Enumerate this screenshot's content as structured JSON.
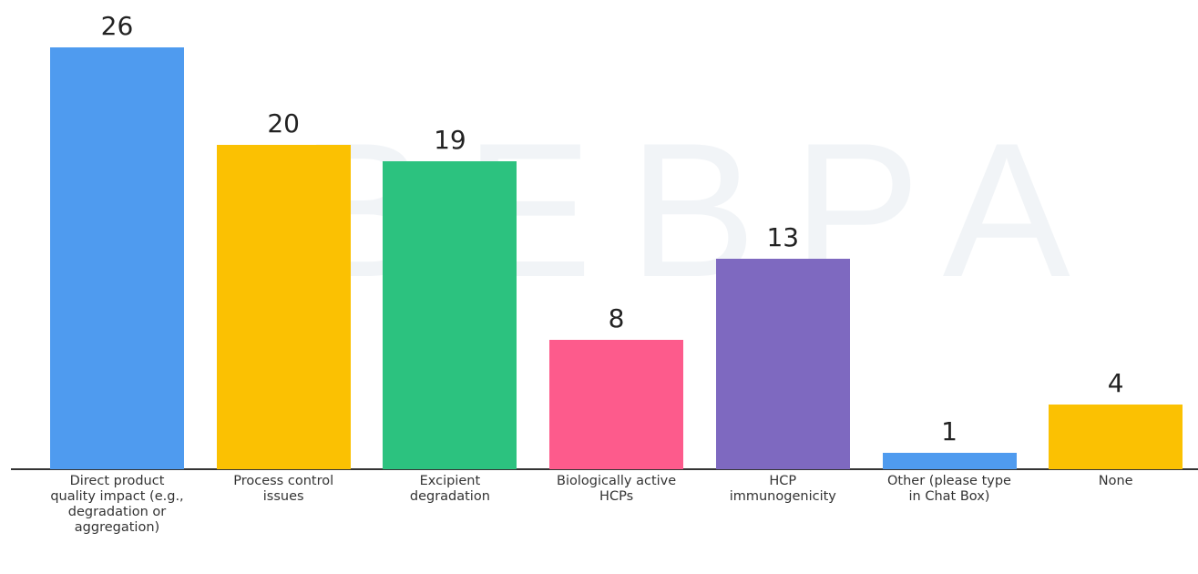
{
  "chart_data": {
    "type": "bar",
    "watermark": "BEBPA",
    "categories": [
      "Direct product quality impact (e.g., degradation or aggregation)",
      "Process control issues",
      "Excipient degradation",
      "Biologically active HCPs",
      "HCP immunogenicity",
      "Other (please type in Chat Box)",
      "None"
    ],
    "values": [
      26,
      20,
      19,
      8,
      13,
      1,
      4
    ],
    "colors": [
      "#4f9bef",
      "#fbc102",
      "#2cc27f",
      "#fd5b8c",
      "#7e69c0",
      "#4f9bef",
      "#fbc102"
    ]
  }
}
